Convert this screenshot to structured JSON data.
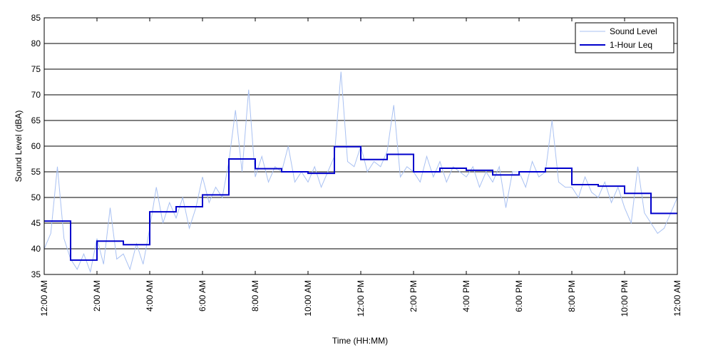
{
  "chart_data": {
    "type": "line",
    "xlabel": "Time (HH:MM)",
    "ylabel": "Sound Level (dBA)",
    "xlim": [
      0,
      24
    ],
    "ylim": [
      35,
      85
    ],
    "xticks": [
      {
        "value": 0,
        "label": "12:00 AM"
      },
      {
        "value": 2,
        "label": "2:00 AM"
      },
      {
        "value": 4,
        "label": "4:00 AM"
      },
      {
        "value": 6,
        "label": "6:00 AM"
      },
      {
        "value": 8,
        "label": "8:00 AM"
      },
      {
        "value": 10,
        "label": "10:00 AM"
      },
      {
        "value": 12,
        "label": "12:00 PM"
      },
      {
        "value": 14,
        "label": "2:00 PM"
      },
      {
        "value": 16,
        "label": "4:00 PM"
      },
      {
        "value": 18,
        "label": "6:00 PM"
      },
      {
        "value": 20,
        "label": "8:00 PM"
      },
      {
        "value": 22,
        "label": "10:00 PM"
      },
      {
        "value": 24,
        "label": "12:00 AM"
      }
    ],
    "yticks": [
      35,
      40,
      45,
      50,
      55,
      60,
      65,
      70,
      75,
      80,
      85
    ],
    "grid": "y",
    "legend": "upper right",
    "series": [
      {
        "name": "Sound Level",
        "color": "#a9c1f2",
        "drawstyle": "line",
        "x": [
          0,
          0.25,
          0.5,
          0.75,
          1,
          1.25,
          1.5,
          1.75,
          2,
          2.25,
          2.5,
          2.75,
          3,
          3.25,
          3.5,
          3.75,
          4,
          4.25,
          4.5,
          4.75,
          5,
          5.25,
          5.5,
          5.75,
          6,
          6.25,
          6.5,
          6.75,
          7,
          7.25,
          7.5,
          7.75,
          8,
          8.25,
          8.5,
          8.75,
          9,
          9.25,
          9.5,
          9.75,
          10,
          10.25,
          10.5,
          10.75,
          11,
          11.25,
          11.5,
          11.75,
          12,
          12.25,
          12.5,
          12.75,
          13,
          13.25,
          13.5,
          13.75,
          14,
          14.25,
          14.5,
          14.75,
          15,
          15.25,
          15.5,
          15.75,
          16,
          16.25,
          16.5,
          16.75,
          17,
          17.25,
          17.5,
          17.75,
          18,
          18.25,
          18.5,
          18.75,
          19,
          19.25,
          19.5,
          19.75,
          20,
          20.25,
          20.5,
          20.75,
          21,
          21.25,
          21.5,
          21.75,
          22,
          22.25,
          22.5,
          22.75,
          23,
          23.25,
          23.5,
          23.75,
          24
        ],
        "values": [
          40,
          43,
          56,
          42,
          38,
          36,
          39,
          35.5,
          42,
          37,
          48,
          38,
          39,
          36,
          41,
          37,
          44,
          52,
          45,
          49,
          46,
          50,
          44,
          48,
          54,
          49,
          52,
          50,
          57,
          67,
          55,
          71,
          54,
          58,
          53,
          56,
          55,
          60,
          53,
          55,
          53,
          56,
          52,
          55,
          58,
          74.5,
          57,
          56,
          60,
          55,
          57,
          56,
          59,
          68,
          54,
          56,
          55,
          53,
          58,
          54,
          57,
          53,
          56,
          55,
          54,
          56,
          52,
          55,
          53,
          56,
          48,
          55,
          55,
          52,
          57,
          54,
          55,
          65,
          53,
          52,
          52,
          50,
          54,
          51,
          50,
          53,
          49,
          52,
          48,
          45,
          56,
          47,
          45,
          43,
          44,
          47,
          50
        ]
      },
      {
        "name": "1-Hour Leq",
        "color": "#0000cc",
        "drawstyle": "steps-post",
        "x": [
          0,
          1,
          2,
          3,
          4,
          5,
          6,
          7,
          8,
          9,
          10,
          11,
          12,
          13,
          14,
          15,
          16,
          17,
          18,
          19,
          20,
          21,
          22,
          23
        ],
        "values": [
          45.4,
          37.8,
          41.5,
          40.8,
          47.2,
          48.2,
          50.5,
          57.5,
          55.6,
          55.0,
          54.7,
          59.9,
          57.4,
          58.4,
          55.0,
          55.7,
          55.3,
          54.4,
          55.0,
          55.7,
          52.5,
          52.2,
          50.8,
          46.9
        ]
      }
    ]
  }
}
